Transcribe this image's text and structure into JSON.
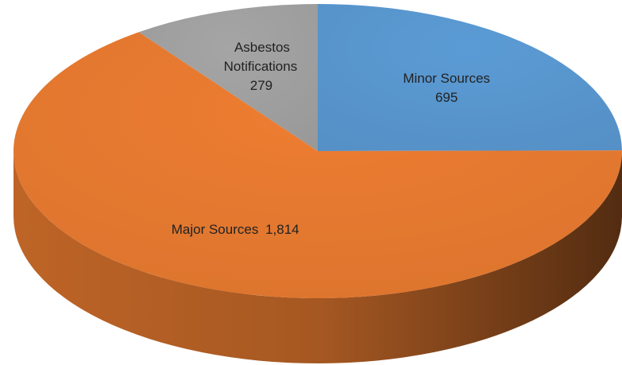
{
  "chart_data": {
    "type": "pie",
    "categories": [
      "Minor Sources",
      "Major Sources",
      "Asbestos Notifications"
    ],
    "values": [
      695,
      1814,
      279
    ],
    "value_labels": [
      "695",
      "1,814",
      "279"
    ],
    "colors": [
      "#5b9bd5",
      "#ed7d31",
      "#a5a5a5"
    ]
  }
}
